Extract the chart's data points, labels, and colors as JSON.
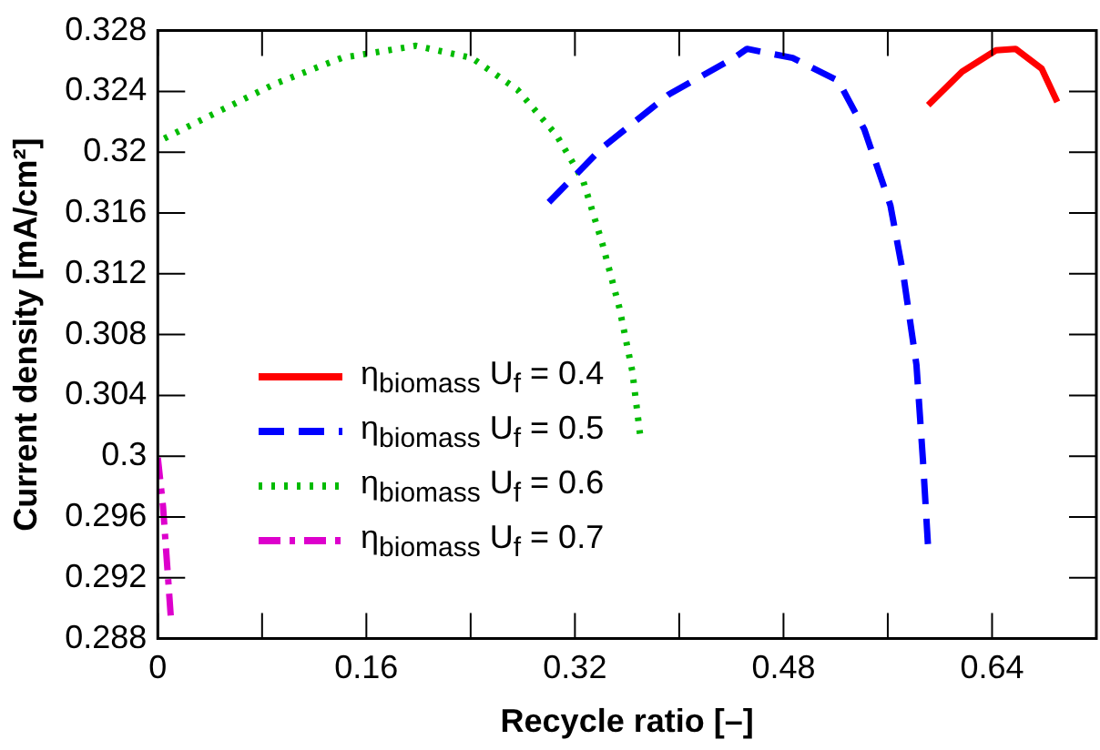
{
  "chart_data": {
    "type": "line",
    "xlabel": "Recycle ratio [–]",
    "ylabel": "Current density [mA/cm²]",
    "xlim": [
      0,
      0.72
    ],
    "ylim": [
      0.288,
      0.328
    ],
    "xticks": [
      0,
      {
        "value": 0.08,
        "label": null
      },
      0.16,
      {
        "value": 0.24,
        "label": null
      },
      0.32,
      {
        "value": 0.4,
        "label": null
      },
      0.48,
      {
        "value": 0.56,
        "label": null
      },
      0.64
    ],
    "yticks": [
      0.288,
      0.292,
      0.296,
      0.3,
      0.304,
      0.308,
      0.312,
      0.316,
      0.32,
      0.324,
      0.328
    ],
    "grid": false,
    "legend": "bottom left",
    "marker": "none",
    "series": [
      {
        "name": "η$_{biomass}$ U$_{f}$ = 0.4",
        "color": "#ff0000",
        "line_style": "solid",
        "x": [
          0.591,
          0.617,
          0.643,
          0.658,
          0.678,
          0.69
        ],
        "values": [
          0.3231,
          0.3253,
          0.3267,
          0.3268,
          0.3255,
          0.3233
        ]
      },
      {
        "name": "η$_{biomass}$ U$_{f}$ = 0.5",
        "color": "#0000ff",
        "line_style": "dashed",
        "x": [
          0.3,
          0.341,
          0.392,
          0.442,
          0.452,
          0.487,
          0.522,
          0.542,
          0.562,
          0.572,
          0.582,
          0.587,
          0.591
        ],
        "values": [
          0.3167,
          0.3203,
          0.3238,
          0.3262,
          0.3268,
          0.3262,
          0.3247,
          0.3215,
          0.3165,
          0.3119,
          0.306,
          0.2997,
          0.2939
        ]
      },
      {
        "name": "η$_{biomass}$ U$_{f}$ = 0.6",
        "color": "#00bb00",
        "line_style": "dotted",
        "x": [
          0.005,
          0.04,
          0.09,
          0.141,
          0.198,
          0.241,
          0.276,
          0.306,
          0.326,
          0.341,
          0.354,
          0.364,
          0.37
        ],
        "values": [
          0.3209,
          0.3224,
          0.3245,
          0.3262,
          0.327,
          0.3262,
          0.3241,
          0.3211,
          0.3182,
          0.314,
          0.3098,
          0.3056,
          0.3014
        ]
      },
      {
        "name": "η$_{biomass}$ U$_{f}$ = 0.7",
        "color": "#dd00cc",
        "line_style": "dashdot",
        "x": [
          0,
          0.004,
          0.01
        ],
        "values": [
          0.2999,
          0.2967,
          0.2894
        ]
      }
    ]
  }
}
